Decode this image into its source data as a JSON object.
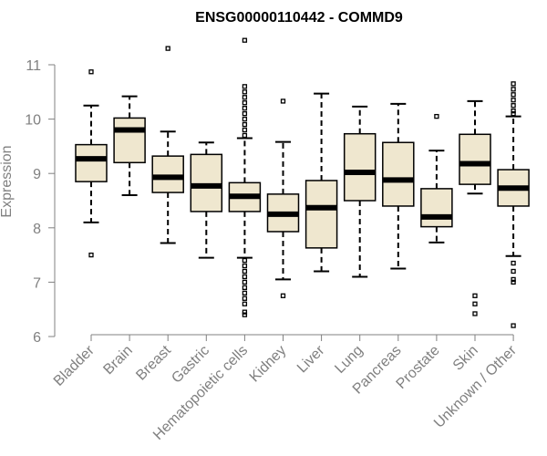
{
  "chart_data": {
    "type": "boxplot",
    "title": "ENSG00000110442 - COMMD9",
    "xlabel": "",
    "ylabel": "Expression",
    "ylim": [
      6,
      11
    ],
    "yticks": [
      6,
      7,
      8,
      9,
      10,
      11
    ],
    "colors": {
      "box_fill": "#efe7cf",
      "axis": "#808080",
      "line": "#000000"
    },
    "categories": [
      "Bladder",
      "Brain",
      "Breast",
      "Gastric",
      "Hematopoietic cells",
      "Kidney",
      "Liver",
      "Lung",
      "Pancreas",
      "Prostate",
      "Skin",
      "Unknown / Other"
    ],
    "boxes": [
      {
        "label": "Bladder",
        "whisker_low": 8.1,
        "q1": 8.85,
        "median": 9.27,
        "q3": 9.53,
        "whisker_high": 10.25,
        "outliers": [
          10.87,
          7.5
        ]
      },
      {
        "label": "Brain",
        "whisker_low": 8.6,
        "q1": 9.2,
        "median": 9.8,
        "q3": 10.02,
        "whisker_high": 10.42,
        "outliers": []
      },
      {
        "label": "Breast",
        "whisker_low": 7.72,
        "q1": 8.65,
        "median": 8.93,
        "q3": 9.32,
        "whisker_high": 9.77,
        "outliers": [
          11.3
        ]
      },
      {
        "label": "Gastric",
        "whisker_low": 7.45,
        "q1": 8.3,
        "median": 8.77,
        "q3": 9.35,
        "whisker_high": 9.57,
        "outliers": []
      },
      {
        "label": "Hematopoietic cells",
        "whisker_low": 7.45,
        "q1": 8.3,
        "median": 8.58,
        "q3": 8.83,
        "whisker_high": 9.65,
        "outliers": [
          11.45,
          10.6,
          10.5,
          10.4,
          10.3,
          10.2,
          10.1,
          10.0,
          9.9,
          9.8,
          9.7,
          7.4,
          7.3,
          7.2,
          7.1,
          7.0,
          6.9,
          6.8,
          6.7,
          6.6,
          6.45,
          6.4
        ]
      },
      {
        "label": "Kidney",
        "whisker_low": 7.05,
        "q1": 7.93,
        "median": 8.25,
        "q3": 8.62,
        "whisker_high": 9.58,
        "outliers": [
          10.33,
          6.75
        ]
      },
      {
        "label": "Liver",
        "whisker_low": 7.2,
        "q1": 7.63,
        "median": 8.37,
        "q3": 8.87,
        "whisker_high": 10.47,
        "outliers": []
      },
      {
        "label": "Lung",
        "whisker_low": 7.1,
        "q1": 8.5,
        "median": 9.02,
        "q3": 9.73,
        "whisker_high": 10.23,
        "outliers": []
      },
      {
        "label": "Pancreas",
        "whisker_low": 7.25,
        "q1": 8.4,
        "median": 8.88,
        "q3": 9.57,
        "whisker_high": 10.28,
        "outliers": []
      },
      {
        "label": "Prostate",
        "whisker_low": 7.73,
        "q1": 8.02,
        "median": 8.2,
        "q3": 8.72,
        "whisker_high": 9.42,
        "outliers": [
          10.05
        ]
      },
      {
        "label": "Skin",
        "whisker_low": 8.63,
        "q1": 8.8,
        "median": 9.18,
        "q3": 9.72,
        "whisker_high": 10.33,
        "outliers": [
          6.75,
          6.6,
          6.42
        ]
      },
      {
        "label": "Unknown / Other",
        "whisker_low": 7.48,
        "q1": 8.4,
        "median": 8.73,
        "q3": 9.07,
        "whisker_high": 10.05,
        "outliers": [
          10.65,
          10.55,
          10.45,
          10.35,
          10.25,
          10.15,
          10.1,
          7.35,
          7.2,
          7.05,
          7.0,
          6.2
        ]
      }
    ]
  }
}
